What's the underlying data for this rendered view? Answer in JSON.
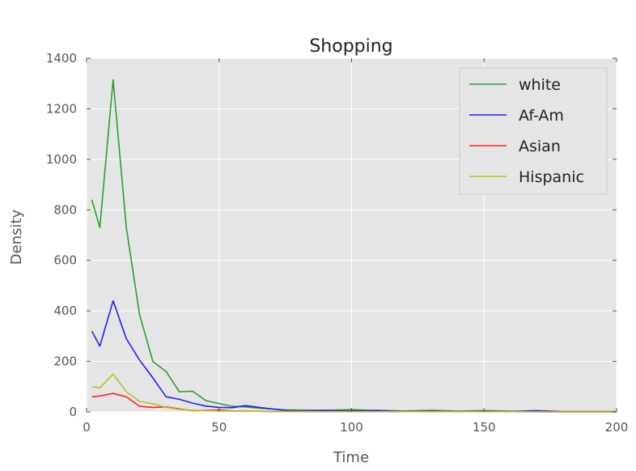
{
  "chart_data": {
    "type": "line",
    "title": "Shopping",
    "xlabel": "Time",
    "ylabel": "Density",
    "xlim": [
      0,
      200
    ],
    "ylim": [
      0,
      1400
    ],
    "xticks": [
      0,
      50,
      100,
      150,
      200
    ],
    "yticks": [
      0,
      200,
      400,
      600,
      800,
      1000,
      1200,
      1400
    ],
    "grid": true,
    "legend_position": "top-right",
    "background": "#e5e5e5",
    "series": [
      {
        "name": "white",
        "color": "#2ca02c",
        "x": [
          2,
          5,
          10,
          15,
          20,
          25,
          30,
          35,
          40,
          45,
          50,
          55,
          60,
          65,
          70,
          75,
          80,
          90,
          100,
          110,
          120,
          130,
          140,
          150,
          160,
          170,
          180,
          190,
          200
        ],
        "y": [
          840,
          730,
          1315,
          730,
          385,
          200,
          160,
          80,
          82,
          45,
          33,
          22,
          20,
          15,
          12,
          8,
          7,
          6,
          9,
          5,
          4,
          6,
          3,
          5,
          3,
          2,
          1,
          1,
          1
        ]
      },
      {
        "name": "Af-Am",
        "color": "#1f1fff",
        "x": [
          2,
          5,
          10,
          15,
          20,
          25,
          30,
          35,
          40,
          45,
          50,
          55,
          60,
          65,
          70,
          75,
          80,
          90,
          100,
          110,
          120,
          130,
          140,
          150,
          160,
          170,
          180,
          190,
          200
        ],
        "y": [
          320,
          260,
          440,
          290,
          205,
          135,
          60,
          50,
          35,
          23,
          18,
          17,
          25,
          18,
          12,
          6,
          5,
          6,
          4,
          6,
          2,
          3,
          2,
          3,
          2,
          5,
          1,
          1,
          1
        ]
      },
      {
        "name": "Asian",
        "color": "#ff2222",
        "x": [
          2,
          5,
          10,
          15,
          20,
          25,
          30,
          35,
          40,
          45,
          50,
          55,
          60,
          70,
          80,
          90,
          100,
          120,
          140,
          160,
          180,
          200
        ],
        "y": [
          60,
          63,
          73,
          60,
          22,
          18,
          20,
          12,
          5,
          6,
          8,
          4,
          3,
          2,
          2,
          1,
          1,
          1,
          1,
          1,
          0,
          0
        ]
      },
      {
        "name": "Hispanic",
        "color": "#bcbd22",
        "x": [
          2,
          5,
          10,
          15,
          20,
          25,
          30,
          35,
          40,
          45,
          50,
          55,
          60,
          70,
          80,
          90,
          100,
          120,
          140,
          160,
          180,
          200
        ],
        "y": [
          100,
          95,
          150,
          80,
          42,
          32,
          18,
          10,
          6,
          5,
          4,
          3,
          3,
          2,
          2,
          1,
          1,
          1,
          1,
          1,
          0,
          0
        ]
      }
    ]
  }
}
